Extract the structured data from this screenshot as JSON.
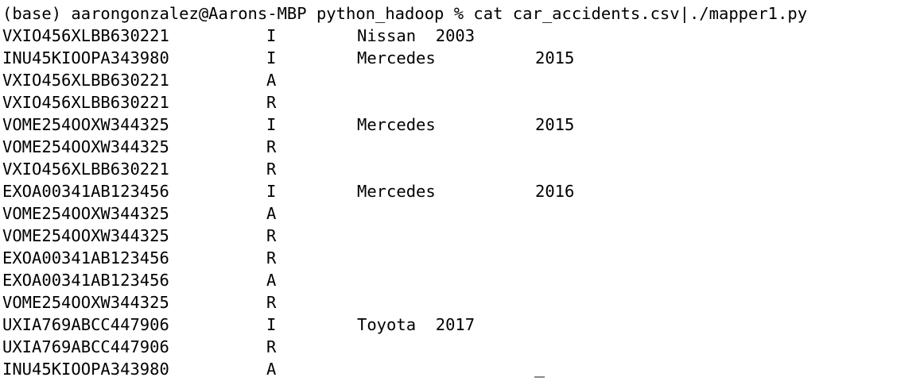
{
  "terminal": {
    "prompt": "(base) aarongonzalez@Aarons-MBP python_hadoop % ",
    "command": "cat car_accidents.csv|./mapper1.py",
    "rows": [
      {
        "vin": "VXIO456XLBB630221",
        "type": "I",
        "make": "Nissan  2003",
        "year": ""
      },
      {
        "vin": "INU45KIOOPA343980",
        "type": "I",
        "make": "Mercedes",
        "year": "2015"
      },
      {
        "vin": "VXIO456XLBB630221",
        "type": "A",
        "make": "",
        "year": ""
      },
      {
        "vin": "VXIO456XLBB630221",
        "type": "R",
        "make": "",
        "year": ""
      },
      {
        "vin": "VOME254OOXW344325",
        "type": "I",
        "make": "Mercedes",
        "year": "2015"
      },
      {
        "vin": "VOME254OOXW344325",
        "type": "R",
        "make": "",
        "year": ""
      },
      {
        "vin": "VXIO456XLBB630221",
        "type": "R",
        "make": "",
        "year": ""
      },
      {
        "vin": "EXOA00341AB123456",
        "type": "I",
        "make": "Mercedes",
        "year": "2016"
      },
      {
        "vin": "VOME254OOXW344325",
        "type": "A",
        "make": "",
        "year": ""
      },
      {
        "vin": "VOME254OOXW344325",
        "type": "R",
        "make": "",
        "year": ""
      },
      {
        "vin": "EXOA00341AB123456",
        "type": "R",
        "make": "",
        "year": ""
      },
      {
        "vin": "EXOA00341AB123456",
        "type": "A",
        "make": "",
        "year": ""
      },
      {
        "vin": "VOME254OOXW344325",
        "type": "R",
        "make": "",
        "year": ""
      },
      {
        "vin": "UXIA769ABCC447906",
        "type": "I",
        "make": "Toyota  2017",
        "year": ""
      },
      {
        "vin": "UXIA769ABCC447906",
        "type": "R",
        "make": "",
        "year": ""
      },
      {
        "vin": "INU45KIOOPA343980",
        "type": "A",
        "make": "",
        "year": ""
      }
    ]
  }
}
